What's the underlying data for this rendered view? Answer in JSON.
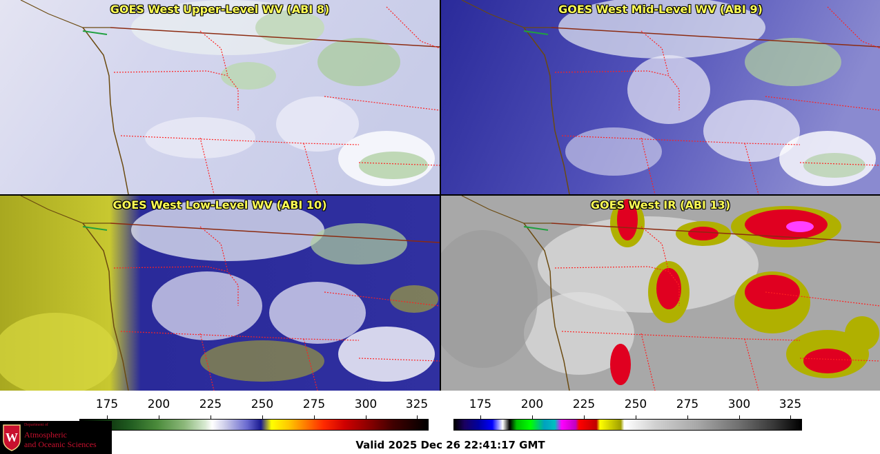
{
  "panels": [
    {
      "title": "GOES West Upper-Level WV (ABI 8)",
      "image": "satellite-water-vapor-upper"
    },
    {
      "title": "GOES West Mid-Level WV (ABI 9)",
      "image": "satellite-water-vapor-mid"
    },
    {
      "title": "GOES West Low-Level WV (ABI 10)",
      "image": "satellite-water-vapor-low"
    },
    {
      "title": "GOES West IR (ABI 13)",
      "image": "satellite-infrared"
    }
  ],
  "colorbar_left": {
    "ticks": [
      "175",
      "200",
      "225",
      "250",
      "275",
      "300",
      "325"
    ]
  },
  "colorbar_right": {
    "ticks": [
      "175",
      "200",
      "225",
      "250",
      "275",
      "300",
      "325"
    ]
  },
  "logo": {
    "department": "Department of",
    "line1": "Atmospheric",
    "line2": "and Oceanic Sciences",
    "badge": "W"
  },
  "footer": {
    "valid_text": "Valid 2025 Dec 26 22:41:17 GMT"
  },
  "colors": {
    "title": "#ffff55",
    "border_state": "#ff2020",
    "coastline": "#6b4a10",
    "logo_red": "#c8102e"
  }
}
